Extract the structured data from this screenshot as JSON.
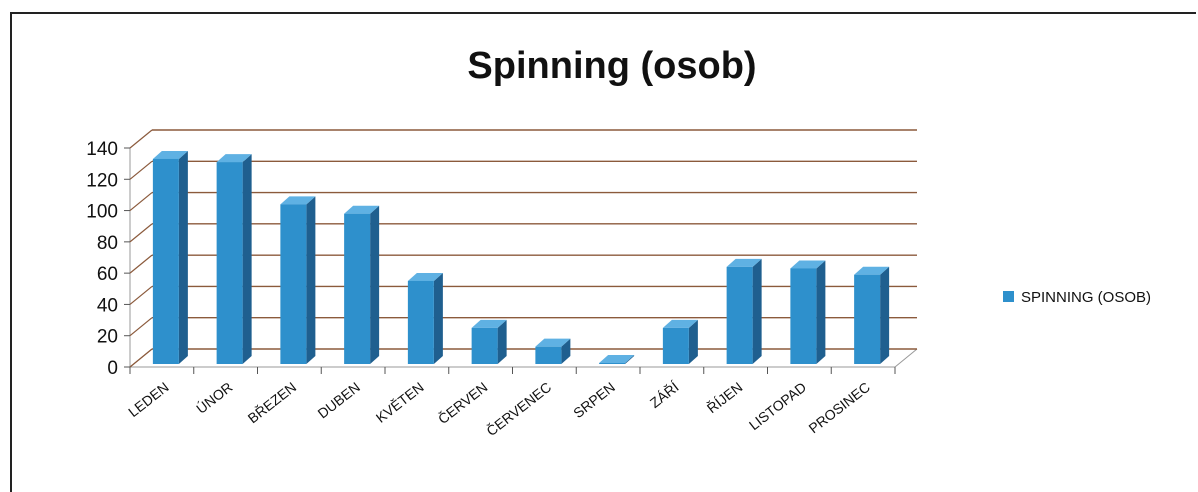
{
  "chart_data": {
    "type": "bar",
    "title": "Spinning (osob)",
    "categories": [
      "LEDEN",
      "ÚNOR",
      "BŘEZEN",
      "DUBEN",
      "KVĚTEN",
      "ČERVEN",
      "ČERVENEC",
      "SRPEN",
      "ZÁŘÍ",
      "ŘÍJEN",
      "LISTOPAD",
      "PROSINEC"
    ],
    "series": [
      {
        "name": "SPINNING (OSOB)",
        "values": [
          133,
          131,
          104,
          98,
          55,
          25,
          13,
          0,
          25,
          64,
          63,
          59
        ],
        "color": "#2e90cc"
      }
    ],
    "ylim": [
      0,
      140
    ],
    "yticks": [
      "0",
      "20",
      "40",
      "60",
      "80",
      "100",
      "120",
      "140"
    ],
    "grid": true,
    "legend": "right",
    "three_d": true,
    "gridline_color": "#8b5a3c"
  }
}
